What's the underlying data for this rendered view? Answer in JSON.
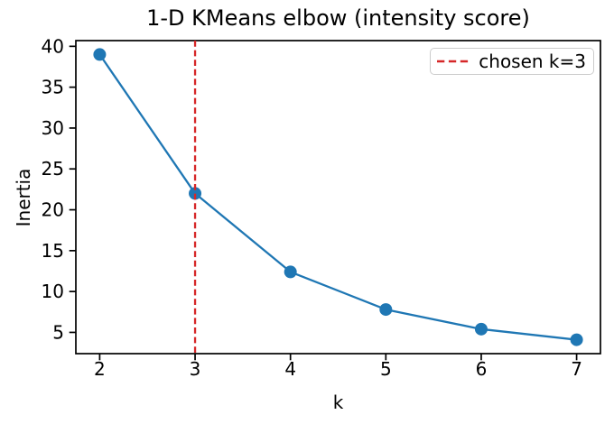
{
  "chart_data": {
    "type": "line",
    "title": "1-D KMeans elbow (intensity score)",
    "xlabel": "k",
    "ylabel": "Inertia",
    "x": [
      2,
      3,
      4,
      5,
      6,
      7
    ],
    "series": [
      {
        "name": "inertia",
        "color": "#1f77b4",
        "marker": "circle",
        "values": [
          39.0,
          22.0,
          12.4,
          7.8,
          5.4,
          4.1
        ]
      }
    ],
    "vline": {
      "x": 3,
      "color": "#d62728",
      "style": "dashed"
    },
    "legend": {
      "position": "upper right",
      "border_color": "#cccccc",
      "entries": [
        {
          "label": "chosen k=3",
          "color": "#d62728",
          "style": "dashed"
        }
      ]
    },
    "xticks": [
      2,
      3,
      4,
      5,
      6,
      7
    ],
    "yticks": [
      5,
      10,
      15,
      20,
      25,
      30,
      35,
      40
    ],
    "xlim": [
      1.75,
      7.25
    ],
    "ylim": [
      2.4,
      40.7
    ],
    "grid": false,
    "axis_color": "#000000",
    "background_color": "#ffffff"
  }
}
